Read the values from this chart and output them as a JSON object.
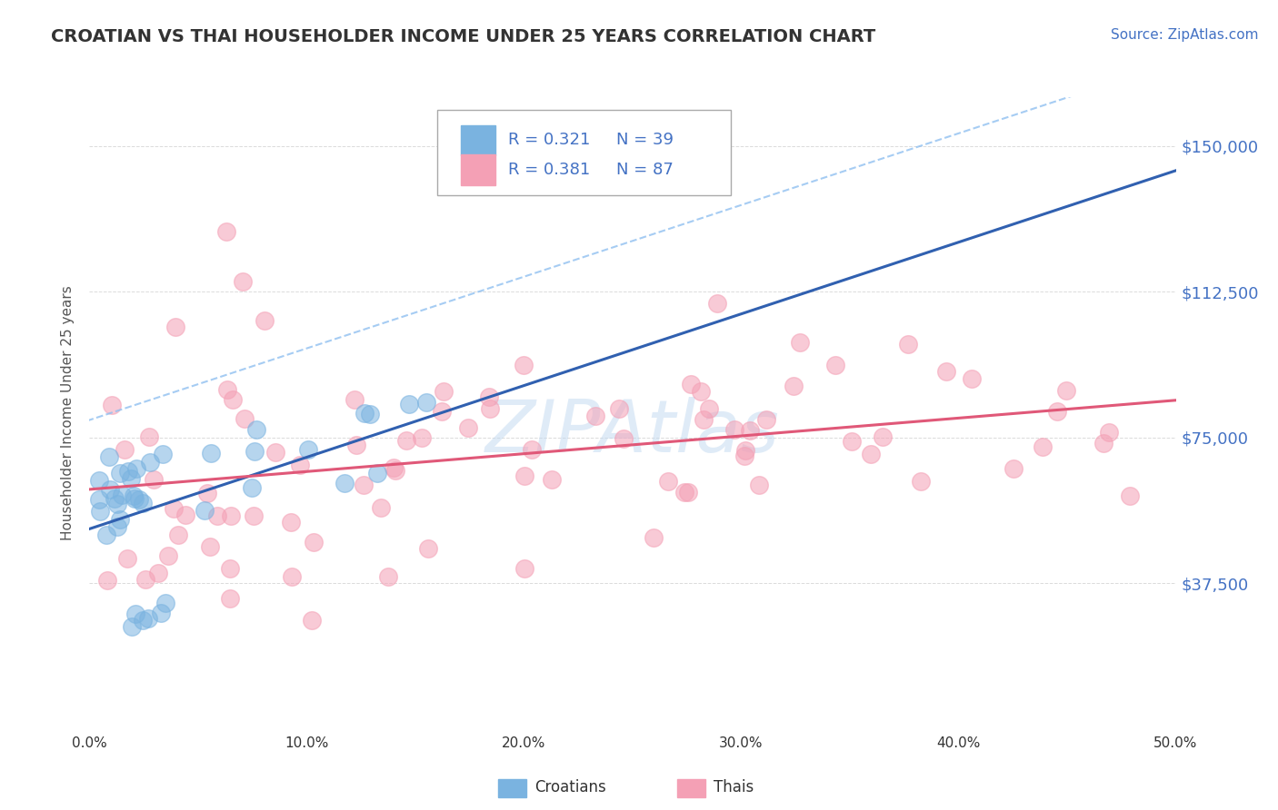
{
  "title": "CROATIAN VS THAI HOUSEHOLDER INCOME UNDER 25 YEARS CORRELATION CHART",
  "source_text": "Source: ZipAtlas.com",
  "ylabel": "Householder Income Under 25 years",
  "xlim": [
    0.0,
    50.0
  ],
  "ylim": [
    0,
    162500
  ],
  "yticks": [
    0,
    37500,
    75000,
    112500,
    150000
  ],
  "ytick_labels": [
    "",
    "$37,500",
    "$75,000",
    "$112,500",
    "$150,000"
  ],
  "xticks": [
    0,
    10,
    20,
    30,
    40,
    50
  ],
  "xtick_labels": [
    "0.0%",
    "10.0%",
    "20.0%",
    "30.0%",
    "40.0%",
    "50.0%"
  ],
  "croatian_color": "#7ab3e0",
  "thai_color": "#f4a0b5",
  "croatian_trend_color": "#3060b0",
  "thai_trend_color": "#e05878",
  "croatian_dashed_color": "#90c0f0",
  "grid_color": "#cccccc",
  "background_color": "#ffffff",
  "r_croatian": "0.321",
  "n_croatian": "39",
  "r_thai": "0.381",
  "n_thai": "87",
  "legend_label_croatian": "Croatians",
  "legend_label_thai": "Thais",
  "watermark_color": "#c0d8f0",
  "watermark_alpha": 0.5,
  "title_color": "#333333",
  "source_color": "#4472c4",
  "ylabel_color": "#555555",
  "tick_label_color": "#333333",
  "right_tick_color": "#4472c4",
  "legend_r_color": "#4472c4",
  "legend_n_color": "#4472c4"
}
